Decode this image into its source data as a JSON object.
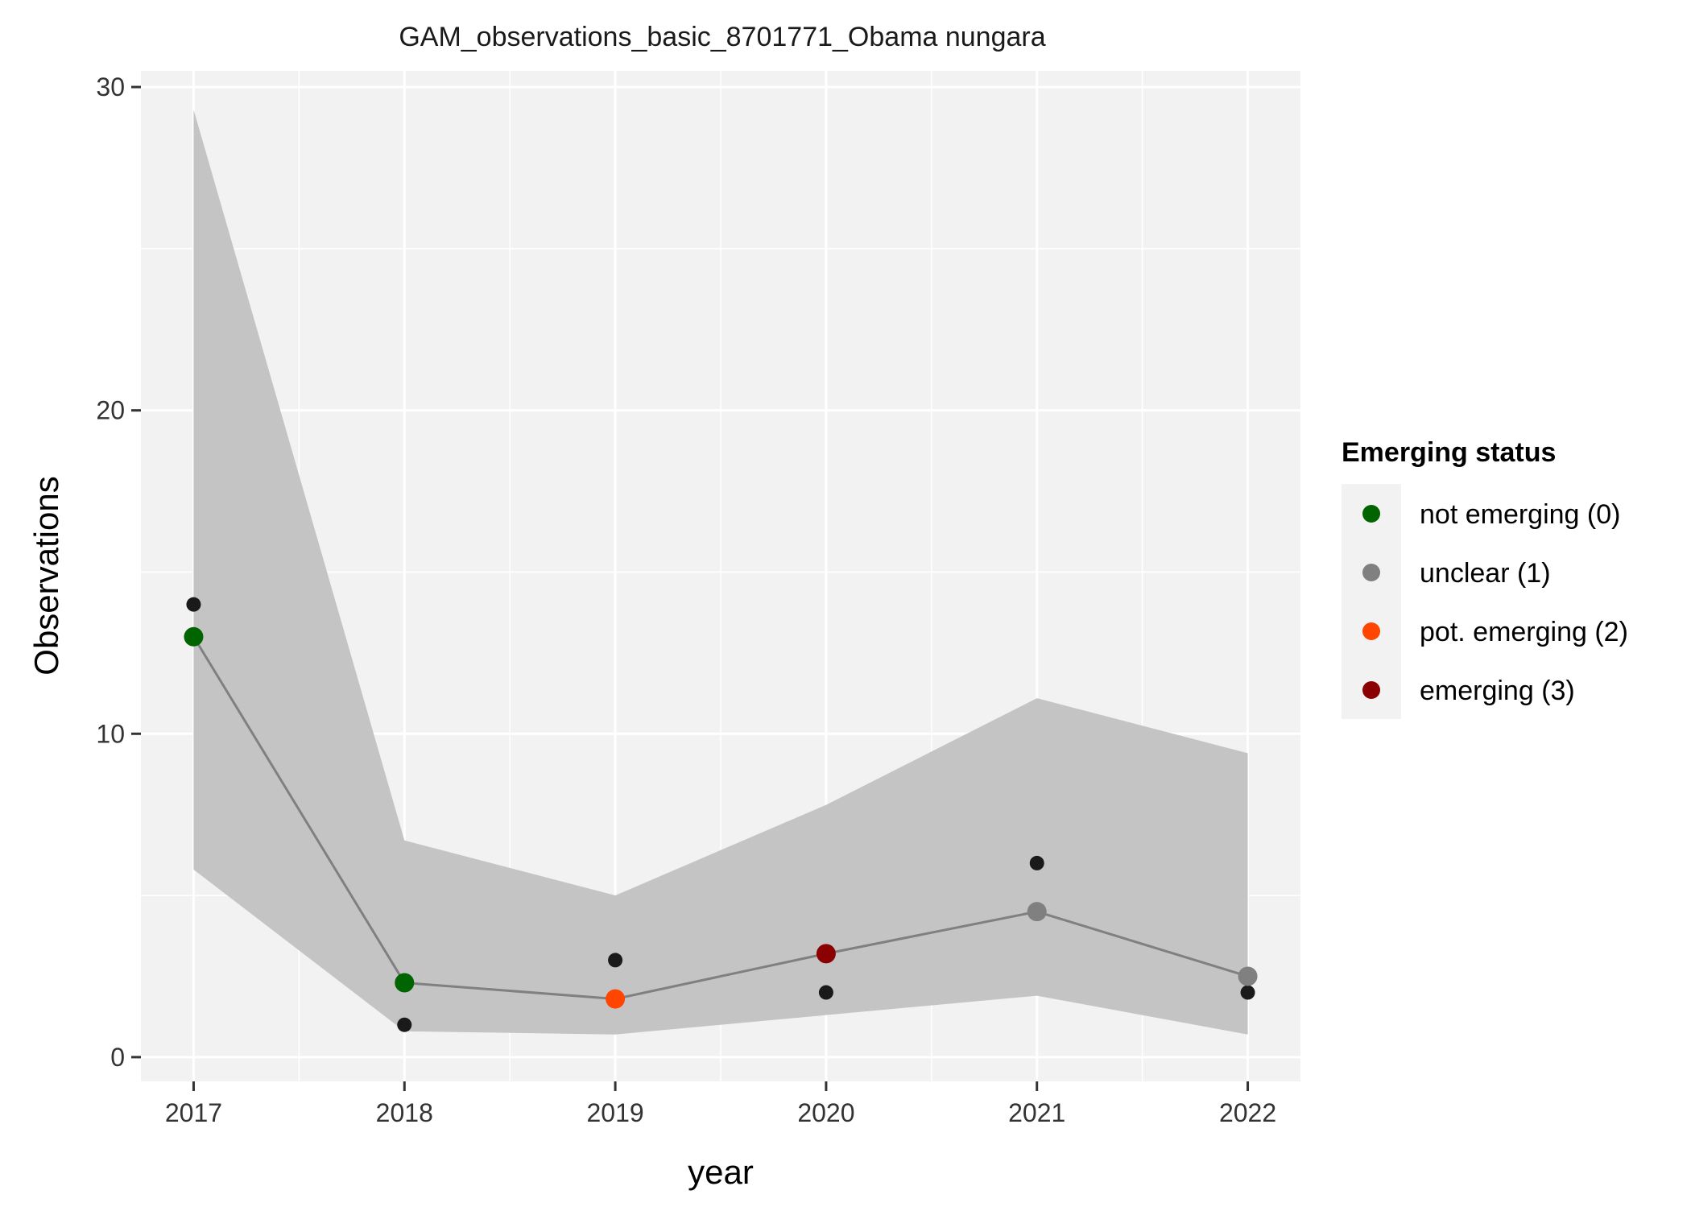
{
  "chart_data": {
    "type": "line",
    "title": "GAM_observations_basic_8701771_Obama nungara",
    "xlabel": "year",
    "ylabel": "Observations",
    "x": [
      2017,
      2018,
      2019,
      2020,
      2021,
      2022
    ],
    "x_tick_labels": [
      "2017",
      "2018",
      "2019",
      "2020",
      "2021",
      "2022"
    ],
    "xlim": [
      2016.75,
      2022.25
    ],
    "ylim": [
      -0.75,
      30.5
    ],
    "y_ticks": [
      0,
      10,
      20,
      30
    ],
    "y_tick_labels": [
      "0",
      "10",
      "20",
      "30"
    ],
    "grid": true,
    "series": [
      {
        "kind": "ribbon",
        "lower": [
          5.8,
          0.8,
          0.7,
          1.3,
          1.9,
          0.7
        ],
        "upper": [
          29.3,
          6.7,
          5.0,
          7.8,
          11.1,
          9.4
        ],
        "color": "#c4c4c4"
      },
      {
        "kind": "fitted",
        "values": [
          13.0,
          2.3,
          1.8,
          3.2,
          4.5,
          2.5
        ],
        "status": [
          0,
          0,
          2,
          3,
          1,
          1
        ],
        "line_color": "#808080"
      },
      {
        "kind": "observed",
        "values": [
          14,
          1,
          3,
          2,
          6,
          2
        ],
        "color": "#1a1a1a"
      }
    ],
    "legend": {
      "title": "Emerging status",
      "position": "right",
      "entries": [
        {
          "status": 0,
          "label": "not emerging (0)",
          "color": "#006400"
        },
        {
          "status": 1,
          "label": "unclear (1)",
          "color": "#808080"
        },
        {
          "status": 2,
          "label": "pot. emerging (2)",
          "color": "#ff4500"
        },
        {
          "status": 3,
          "label": "emerging (3)",
          "color": "#8b0000"
        }
      ]
    },
    "panel_background": "#f2f2f2",
    "grid_color": "#ffffff"
  }
}
